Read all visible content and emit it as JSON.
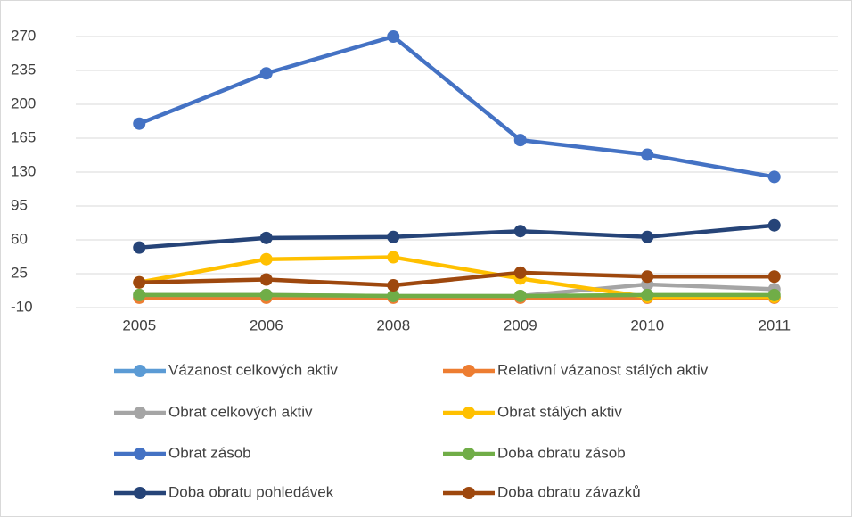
{
  "chart_data": {
    "type": "line",
    "categories": [
      "2005",
      "2006",
      "2008",
      "2009",
      "2010",
      "2011"
    ],
    "ylim": [
      -10,
      270
    ],
    "yticks": [
      -10,
      25,
      60,
      95,
      130,
      165,
      200,
      235,
      270
    ],
    "grid": true,
    "series": [
      {
        "name": "Vázanost celkových aktiv",
        "color": "#5b9bd5",
        "values": [
          0.5,
          0.5,
          0.5,
          0.5,
          0.5,
          0.5
        ]
      },
      {
        "name": "Relativní vázanost stálých aktiv",
        "color": "#ed7d31",
        "values": [
          0.2,
          0.2,
          0.2,
          0.2,
          0.2,
          0.2
        ]
      },
      {
        "name": "Obrat celkových aktiv",
        "color": "#a5a5a5",
        "values": [
          3,
          3,
          2,
          2,
          14,
          9
        ]
      },
      {
        "name": "Obrat stálých aktiv",
        "color": "#ffc000",
        "values": [
          16,
          40,
          42,
          20,
          1,
          1
        ]
      },
      {
        "name": "Obrat zásob",
        "color": "#4472c4",
        "values": [
          180,
          232,
          270,
          163,
          148,
          125
        ]
      },
      {
        "name": "Doba obratu zásob",
        "color": "#70ad47",
        "values": [
          3,
          3,
          2,
          2,
          3,
          3
        ]
      },
      {
        "name": "Doba obratu pohledávek",
        "color": "#264478",
        "values": [
          52,
          62,
          63,
          69,
          63,
          75
        ]
      },
      {
        "name": "Doba obratu závazků",
        "color": "#9e480e",
        "values": [
          16,
          19,
          13,
          26,
          22,
          22
        ]
      }
    ]
  }
}
